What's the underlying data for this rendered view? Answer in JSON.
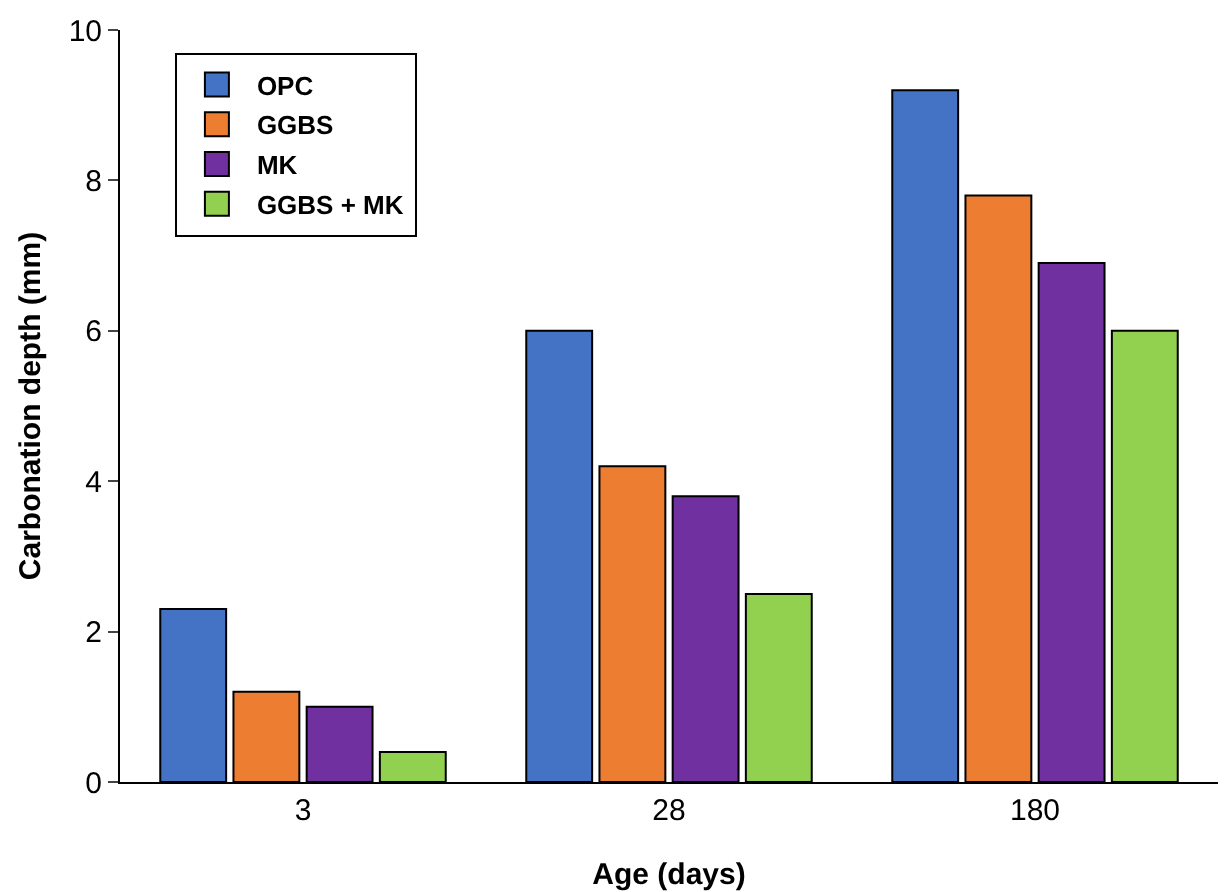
{
  "chart_data": {
    "type": "bar",
    "xlabel": "Age (days)",
    "ylabel": "Carbonation depth (mm)",
    "categories": [
      "3",
      "28",
      "180"
    ],
    "series": [
      {
        "name": "OPC",
        "color": "#4472c4",
        "values": [
          2.3,
          6.0,
          9.2
        ]
      },
      {
        "name": "GGBS",
        "color": "#ed7d31",
        "values": [
          1.2,
          4.2,
          7.8
        ]
      },
      {
        "name": "MK",
        "color": "#7030a0",
        "values": [
          1.0,
          3.8,
          6.9
        ]
      },
      {
        "name": "GGBS + MK",
        "color": "#92d050",
        "values": [
          0.4,
          2.5,
          6.0
        ]
      }
    ],
    "ylim": [
      0,
      10
    ],
    "yticks": [
      0,
      2,
      4,
      6,
      8,
      10
    ],
    "grid": false,
    "legend": "top left"
  }
}
